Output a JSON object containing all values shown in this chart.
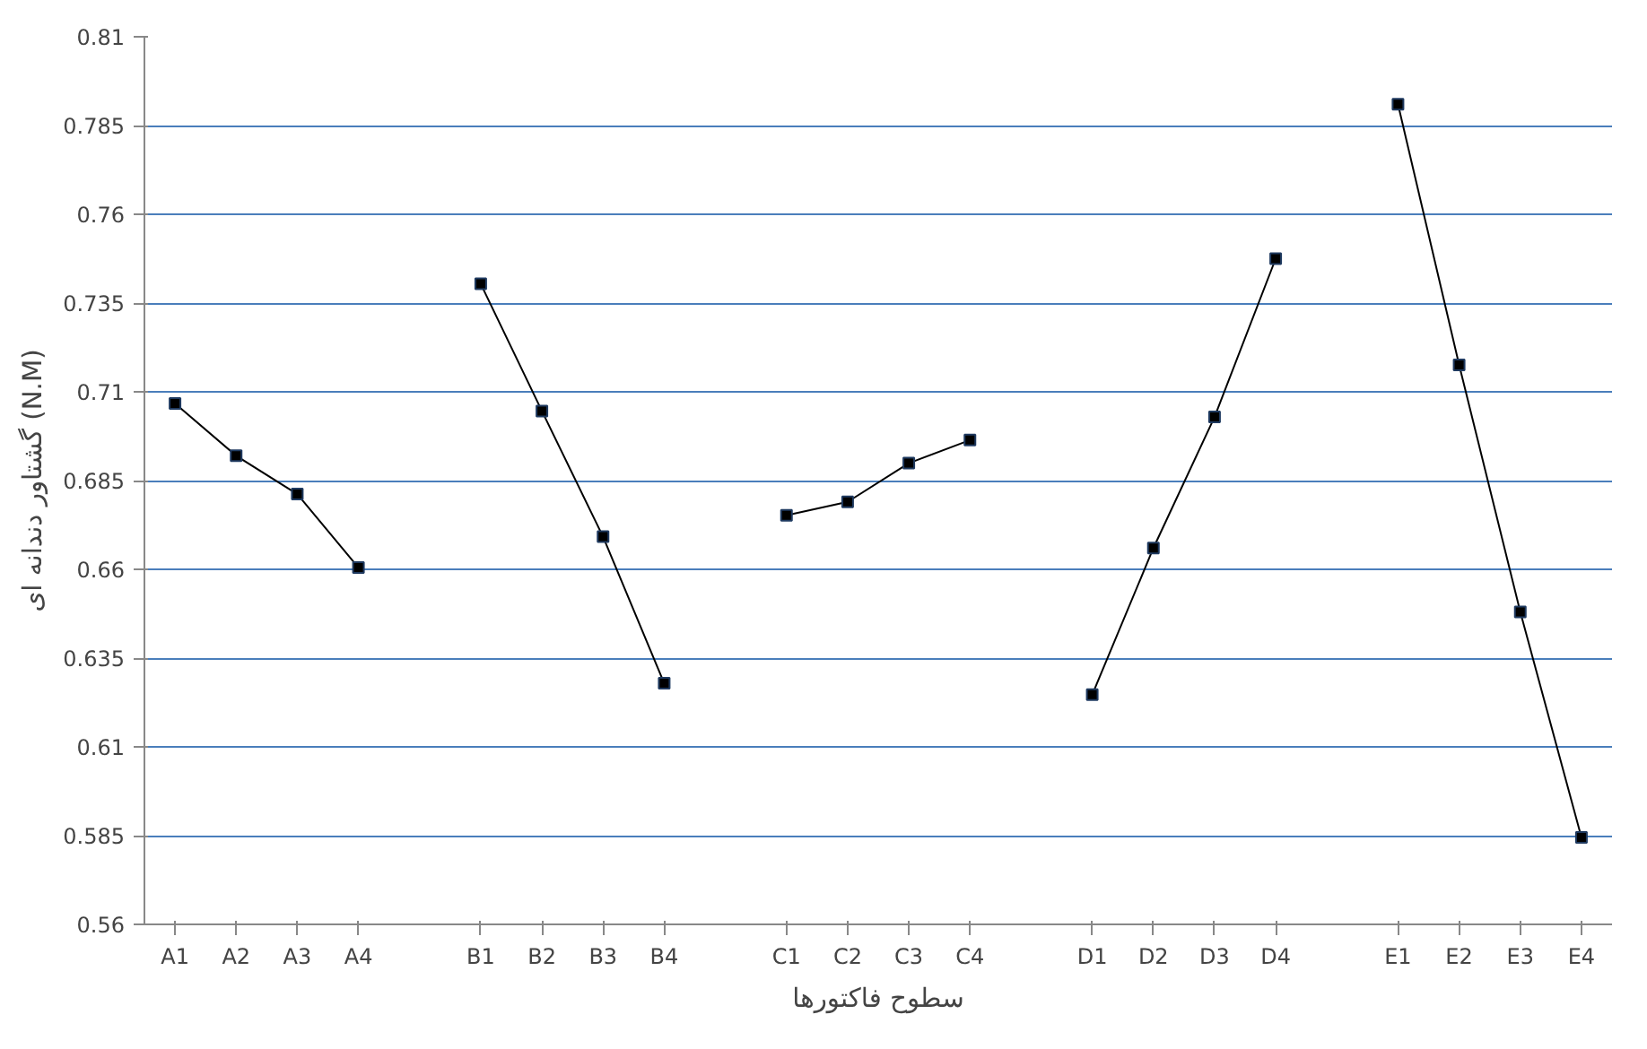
{
  "chart_data": {
    "type": "line",
    "xlabel": "سطوح فاکتورها",
    "ylabel": "گشتاور دندانه ای (N.M)",
    "categories": [
      "A1",
      "A2",
      "A3",
      "A4",
      null,
      "B1",
      "B2",
      "B3",
      "B4",
      null,
      "C1",
      "C2",
      "C3",
      "C4",
      null,
      "D1",
      "D2",
      "D3",
      "D4",
      null,
      "E1",
      "E2",
      "E3",
      "E4"
    ],
    "series": [
      {
        "color": "#000000",
        "values": [
          0.7067,
          0.692,
          0.6812,
          0.6605,
          null,
          0.7404,
          0.7046,
          0.6692,
          0.6279,
          null,
          0.6752,
          0.679,
          0.6899,
          0.6964,
          null,
          0.6247,
          0.666,
          0.7029,
          0.7475,
          null,
          0.791,
          0.7176,
          0.648,
          0.5845
        ]
      }
    ],
    "ylim": [
      0.56,
      0.81
    ],
    "yticks": [
      0.56,
      0.585,
      0.61,
      0.635,
      0.66,
      0.685,
      0.71,
      0.735,
      0.76,
      0.785,
      0.81
    ],
    "grid": "y",
    "marker": "square",
    "line_style": "solid"
  }
}
